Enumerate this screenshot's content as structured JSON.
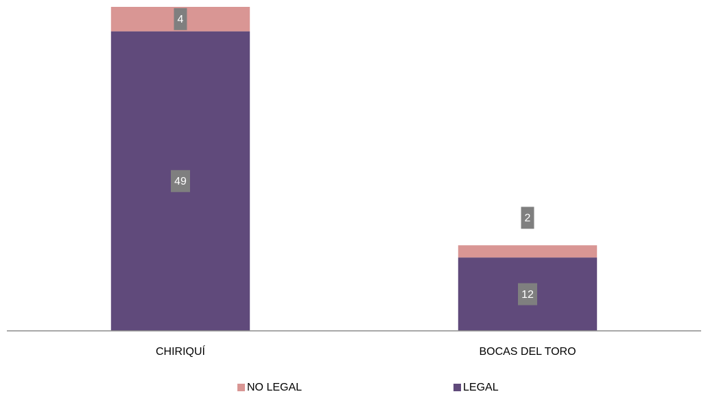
{
  "chart_data": {
    "type": "stacked_bar",
    "categories": [
      "CHIRIQUÍ",
      "BOCAS DEL TORO"
    ],
    "series": [
      {
        "name": "LEGAL",
        "color": "#604a7b",
        "values": [
          49,
          12
        ]
      },
      {
        "name": "NO LEGAL",
        "color": "#d99694",
        "values": [
          4,
          2
        ]
      }
    ]
  }
}
